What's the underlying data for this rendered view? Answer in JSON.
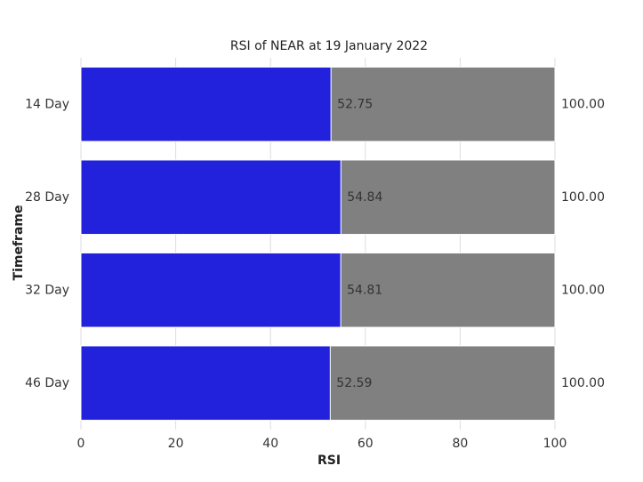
{
  "chart_data": {
    "type": "barh",
    "title": "RSI of NEAR at 19 January 2022",
    "xlabel": "RSI",
    "ylabel": "Timeframe",
    "categories": [
      "14 Day",
      "28 Day",
      "32 Day",
      "46 Day"
    ],
    "series": [
      {
        "color": "#2222dd",
        "values": [
          52.75,
          54.84,
          54.81,
          52.59
        ]
      },
      {
        "color": "#808080",
        "values": [
          100,
          100,
          100,
          100
        ],
        "value_labels": [
          "100.00",
          "100.00",
          "100.00",
          "100.00"
        ]
      }
    ],
    "xlim": [
      0,
      100
    ],
    "xticks": [
      0,
      20,
      40,
      60,
      80,
      100
    ],
    "grid": true
  }
}
